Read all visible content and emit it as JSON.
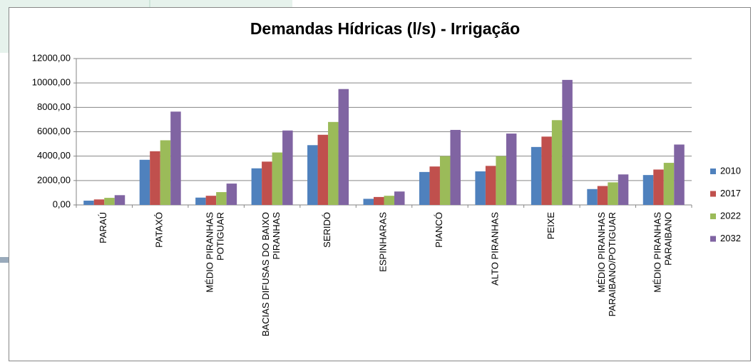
{
  "chart_data": {
    "type": "bar",
    "title": "Demandas Hídricas (l/s) - Irrigação",
    "categories": [
      "PARAÚ",
      "PATAXÓ",
      "MÉDIO PIRANHAS POTIGUAR",
      "BACIAS DIFUSAS DO BAIXO PIRANHAS",
      "SERIDÓ",
      "ESPINHARAS",
      "PIANCÓ",
      "ALTO PIRANHAS",
      "PEIXE",
      "MÉDIO PIRANHAS PARAIBANO/POTIGUAR",
      "MÉDIO PIRANHAS PARAIBANO"
    ],
    "series": [
      {
        "name": "2010",
        "color": "#4f81bd",
        "values": [
          350,
          3700,
          600,
          3000,
          4900,
          500,
          2700,
          2750,
          4750,
          1300,
          2450
        ]
      },
      {
        "name": "2017",
        "color": "#c0504d",
        "values": [
          450,
          4400,
          750,
          3550,
          5750,
          650,
          3150,
          3200,
          5600,
          1550,
          2900
        ]
      },
      {
        "name": "2022",
        "color": "#9bbb59",
        "values": [
          580,
          5300,
          1050,
          4300,
          6800,
          750,
          4000,
          4000,
          6950,
          1850,
          3450
        ]
      },
      {
        "name": "2032",
        "color": "#8064a2",
        "values": [
          800,
          7650,
          1750,
          6100,
          9500,
          1100,
          6150,
          5850,
          10250,
          2500,
          4950
        ]
      }
    ],
    "ylim": [
      0,
      12000
    ],
    "yticks": [
      {
        "value": 0,
        "label": "0,00"
      },
      {
        "value": 2000,
        "label": "2000,00"
      },
      {
        "value": 4000,
        "label": "4000,00"
      },
      {
        "value": 6000,
        "label": "6000,00"
      },
      {
        "value": 8000,
        "label": "8000,00"
      },
      {
        "value": 10000,
        "label": "10000,00"
      },
      {
        "value": 12000,
        "label": "12000,00"
      }
    ],
    "grid": true,
    "legend": "right"
  }
}
